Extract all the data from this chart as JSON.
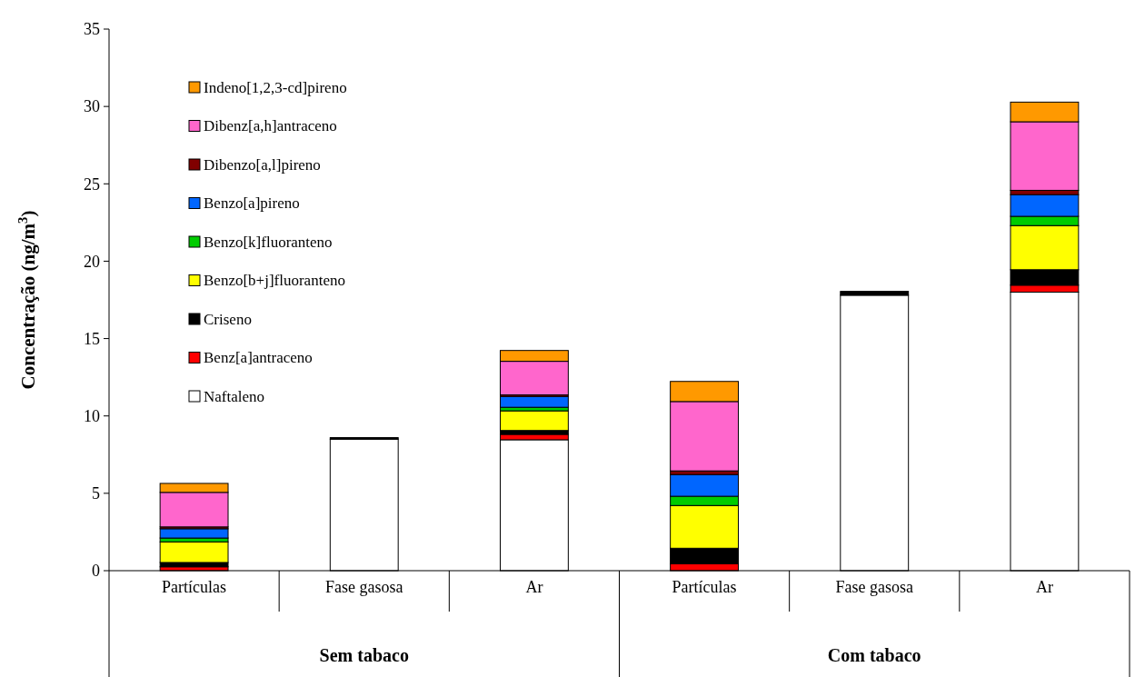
{
  "chart_data": {
    "type": "bar",
    "stacked": true,
    "ylabel": "Concentração (ng/m$^{3}$)",
    "categories": [
      "Partículas",
      "Fase gasosa",
      "Ar",
      "Partículas",
      "Fase gasosa",
      "Ar"
    ],
    "annotations": [
      "Sem tabaco",
      "Com tabaco"
    ],
    "ylim": [
      0,
      35
    ],
    "yticks": [
      0,
      5,
      10,
      15,
      20,
      25,
      30,
      35
    ],
    "grid": false,
    "legend": "top left",
    "series": [
      {
        "name": "Naftaleno",
        "color": "#ffffff",
        "values": [
          0,
          8.5,
          8.46,
          0,
          17.8,
          18.0
        ]
      },
      {
        "name": "Benz[a]antraceno",
        "color": "#ff0000",
        "values": [
          0.25,
          0,
          0.35,
          0.45,
          0,
          0.45
        ]
      },
      {
        "name": "Criseno",
        "color": "#000000",
        "values": [
          0.28,
          0.1,
          0.25,
          1.0,
          0.25,
          1.0
        ]
      },
      {
        "name": "Benzo[b+j]fluoranteno",
        "color": "#ffff00",
        "values": [
          1.33,
          0,
          1.27,
          2.76,
          0,
          2.85
        ]
      },
      {
        "name": "Benzo[k]fluoranteno",
        "color": "#00cc00",
        "values": [
          0.25,
          0,
          0.23,
          0.6,
          0,
          0.6
        ]
      },
      {
        "name": "Benzo[a]pireno",
        "color": "#0066ff",
        "values": [
          0.6,
          0,
          0.7,
          1.4,
          0,
          1.4
        ]
      },
      {
        "name": "Dibenzo[a,l]pireno",
        "color": "#800000",
        "values": [
          0.12,
          0,
          0.1,
          0.24,
          0,
          0.28
        ]
      },
      {
        "name": "Dibenz[a,h]antraceno",
        "color": "#ff66cc",
        "values": [
          2.23,
          0,
          2.17,
          4.48,
          0,
          4.43
        ]
      },
      {
        "name": "Indeno[1,2,3-cd]pireno",
        "color": "#ff9900",
        "values": [
          0.58,
          0,
          0.7,
          1.3,
          0,
          1.27
        ]
      }
    ]
  }
}
